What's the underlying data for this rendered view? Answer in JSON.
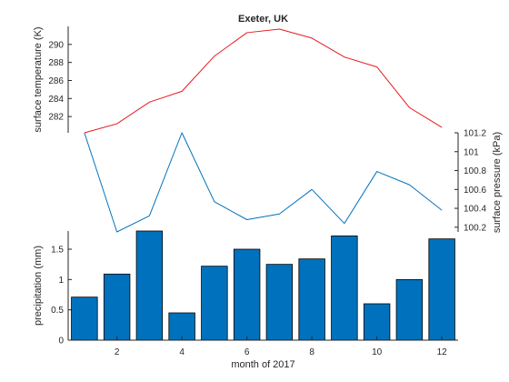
{
  "chart_data": [
    {
      "type": "line",
      "title": "Exeter, UK",
      "x": [
        1,
        2,
        3,
        4,
        5,
        6,
        7,
        8,
        9,
        10,
        11,
        12
      ],
      "series": [
        {
          "values": [
            280.2,
            281.2,
            283.6,
            284.8,
            288.7,
            291.3,
            291.7,
            290.7,
            288.6,
            287.5,
            283.0,
            280.8
          ],
          "color": "#e8191e"
        }
      ],
      "ylabel": "surface temperature (K)",
      "ylim": [
        280.2,
        292
      ],
      "yticks": [
        282,
        284,
        286,
        288,
        290
      ],
      "yaxis_side": "left",
      "grid": false
    },
    {
      "type": "line",
      "x": [
        1,
        2,
        3,
        4,
        5,
        6,
        7,
        8,
        9,
        10,
        11,
        12
      ],
      "series": [
        {
          "values": [
            101.2,
            100.15,
            100.32,
            101.2,
            100.47,
            100.28,
            100.34,
            100.6,
            100.24,
            100.79,
            100.65,
            100.38
          ],
          "color": "#0072bd"
        }
      ],
      "ylabel": "surface pressure (kPa)",
      "ylim": [
        100.15,
        101.2
      ],
      "yticks": [
        100.2,
        100.4,
        100.6,
        100.8,
        101,
        101.2
      ],
      "ytick_labels": [
        "100.2",
        "100.4",
        "100.6",
        "100.8",
        "101",
        "101.2"
      ],
      "yaxis_side": "right",
      "grid": false
    },
    {
      "type": "bar",
      "x": [
        1,
        2,
        3,
        4,
        5,
        6,
        7,
        8,
        9,
        10,
        11,
        12
      ],
      "values": [
        0.71,
        1.09,
        1.8,
        0.45,
        1.22,
        1.5,
        1.25,
        1.34,
        1.72,
        0.6,
        1.0,
        1.67
      ],
      "color": "#0072bd",
      "xlabel": "month of 2017",
      "ylabel": "precipitation (mm)",
      "xlim": [
        0.5,
        12.5
      ],
      "xticks": [
        2,
        4,
        6,
        8,
        10,
        12
      ],
      "ylim": [
        0,
        1.8
      ],
      "yticks": [
        0,
        0.5,
        1,
        1.5
      ],
      "ytick_labels": [
        "0",
        "0.5",
        "1",
        "1.5"
      ],
      "yaxis_side": "left",
      "grid": false
    }
  ]
}
